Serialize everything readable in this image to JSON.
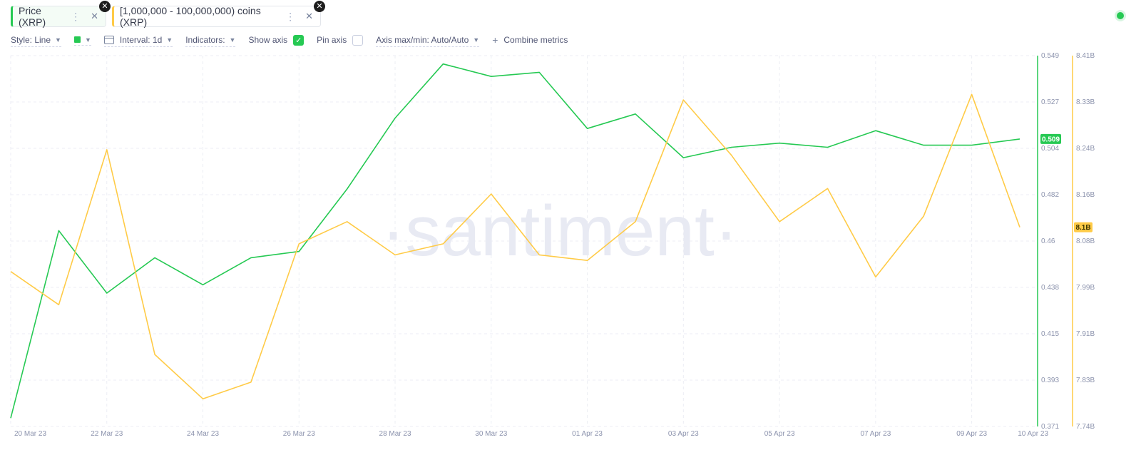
{
  "metrics": [
    {
      "label": "Price (XRP)",
      "color": "#26c953"
    },
    {
      "label": "[1,000,000 - 100,000,000) coins (XRP)",
      "color": "#ffcb47"
    }
  ],
  "toolbar": {
    "style": "Style: Line",
    "interval": "Interval: 1d",
    "indicators": "Indicators:",
    "show_axis": "Show axis",
    "show_axis_checked": true,
    "pin_axis": "Pin axis",
    "pin_axis_checked": false,
    "axis_maxmin": "Axis max/min: Auto/Auto",
    "combine": "Combine metrics"
  },
  "icons": {
    "more": "more-vertical-icon",
    "close": "close-icon",
    "chevron": "chevron-down-icon",
    "calendar": "calendar-icon",
    "plus": "plus-icon",
    "check": "check-icon"
  },
  "watermark": "·santiment·",
  "chart_data": {
    "type": "line",
    "x": [
      "20 Mar 23",
      "21 Mar 23",
      "22 Mar 23",
      "23 Mar 23",
      "24 Mar 23",
      "25 Mar 23",
      "26 Mar 23",
      "27 Mar 23",
      "28 Mar 23",
      "29 Mar 23",
      "30 Mar 23",
      "31 Mar 23",
      "01 Apr 23",
      "02 Apr 23",
      "03 Apr 23",
      "04 Apr 23",
      "05 Apr 23",
      "06 Apr 23",
      "07 Apr 23",
      "08 Apr 23",
      "09 Apr 23",
      "10 Apr 23"
    ],
    "x_tick_labels": [
      "20 Mar 23",
      "22 Mar 23",
      "24 Mar 23",
      "26 Mar 23",
      "28 Mar 23",
      "30 Mar 23",
      "01 Apr 23",
      "03 Apr 23",
      "05 Apr 23",
      "07 Apr 23",
      "09 Apr 23",
      "10 Apr 23"
    ],
    "series": [
      {
        "name": "Price (XRP)",
        "color": "#26c953",
        "axis": "left",
        "values": [
          0.375,
          0.465,
          0.435,
          0.452,
          0.439,
          0.452,
          0.455,
          0.485,
          0.519,
          0.545,
          0.539,
          0.541,
          0.514,
          0.521,
          0.5,
          0.505,
          0.507,
          0.505,
          0.513,
          0.506,
          0.506,
          0.509
        ],
        "last_value_label": "0.509"
      },
      {
        "name": "[1,000,000 - 100,000,000) coins (XRP)",
        "color": "#ffcb47",
        "axis": "right",
        "values": [
          8.02,
          7.96,
          8.24,
          7.87,
          7.79,
          7.82,
          8.07,
          8.11,
          8.05,
          8.07,
          8.16,
          8.05,
          8.04,
          8.11,
          8.33,
          8.23,
          8.11,
          8.17,
          8.01,
          8.12,
          8.34,
          8.1
        ],
        "last_value_label": "8.1B"
      }
    ],
    "y_left": {
      "ticks": [
        "0.549",
        "0.527",
        "0.504",
        "0.482",
        "0.46",
        "0.438",
        "0.415",
        "0.393",
        "0.371"
      ],
      "ylim": [
        0.371,
        0.549
      ]
    },
    "y_right": {
      "ticks": [
        "8.41B",
        "8.33B",
        "8.24B",
        "8.16B",
        "8.08B",
        "7.99B",
        "7.91B",
        "7.83B",
        "7.74B"
      ],
      "ylim": [
        7.74,
        8.41
      ]
    },
    "grid": true,
    "title": "",
    "xlabel": "",
    "ylabel": ""
  }
}
